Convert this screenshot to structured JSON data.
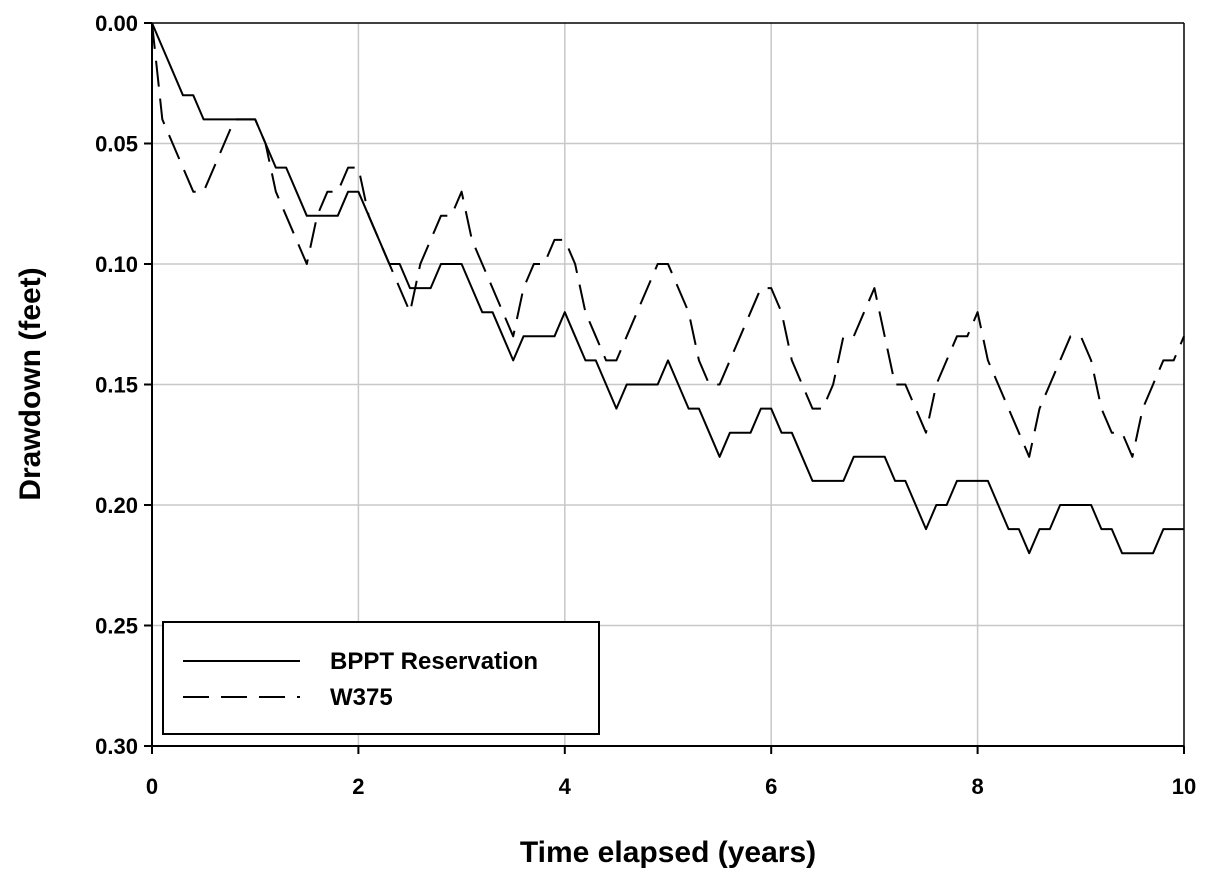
{
  "chart_data": {
    "type": "line",
    "title": "",
    "xlabel": "Time elapsed (years)",
    "ylabel": "Drawdown (feet)",
    "xlim": [
      0,
      10
    ],
    "ylim": [
      0,
      0.3
    ],
    "y_inverted": true,
    "grid": true,
    "legend_position": "bottom-left",
    "x_ticks": [
      0,
      2,
      4,
      6,
      8,
      10
    ],
    "x_tick_labels": [
      "0",
      "2",
      "4",
      "6",
      "8",
      "10"
    ],
    "y_ticks": [
      0,
      0.05,
      0.1,
      0.15,
      0.2,
      0.25,
      0.3
    ],
    "y_tick_labels": [
      "0.00",
      "0.05",
      "0.10",
      "0.15",
      "0.20",
      "0.25",
      "0.30"
    ],
    "series": [
      {
        "name": "BPPT Reservation",
        "style": "solid",
        "color": "#000000",
        "x": [
          0,
          0.1,
          0.2,
          0.3,
          0.4,
          0.5,
          0.6,
          0.7,
          0.8,
          0.9,
          1.0,
          1.1,
          1.2,
          1.3,
          1.4,
          1.5,
          1.6,
          1.7,
          1.8,
          1.9,
          2.0,
          2.1,
          2.2,
          2.3,
          2.4,
          2.5,
          2.6,
          2.7,
          2.8,
          2.9,
          3.0,
          3.1,
          3.2,
          3.3,
          3.4,
          3.5,
          3.6,
          3.7,
          3.8,
          3.9,
          4.0,
          4.1,
          4.2,
          4.3,
          4.4,
          4.5,
          4.6,
          4.7,
          4.8,
          4.9,
          5.0,
          5.1,
          5.2,
          5.3,
          5.4,
          5.5,
          5.6,
          5.7,
          5.8,
          5.9,
          6.0,
          6.1,
          6.2,
          6.3,
          6.4,
          6.5,
          6.6,
          6.7,
          6.8,
          6.9,
          7.0,
          7.1,
          7.2,
          7.3,
          7.4,
          7.5,
          7.6,
          7.7,
          7.8,
          7.9,
          8.0,
          8.1,
          8.2,
          8.3,
          8.4,
          8.5,
          8.6,
          8.7,
          8.8,
          8.9,
          9.0,
          9.1,
          9.2,
          9.3,
          9.4,
          9.5,
          9.6,
          9.7,
          9.8,
          9.9,
          10.0
        ],
        "y": [
          0,
          0.01,
          0.02,
          0.03,
          0.03,
          0.04,
          0.04,
          0.04,
          0.04,
          0.04,
          0.04,
          0.05,
          0.06,
          0.06,
          0.07,
          0.08,
          0.08,
          0.08,
          0.08,
          0.07,
          0.07,
          0.08,
          0.09,
          0.1,
          0.1,
          0.11,
          0.11,
          0.11,
          0.1,
          0.1,
          0.1,
          0.11,
          0.12,
          0.12,
          0.13,
          0.14,
          0.13,
          0.13,
          0.13,
          0.13,
          0.12,
          0.13,
          0.14,
          0.14,
          0.15,
          0.16,
          0.15,
          0.15,
          0.15,
          0.15,
          0.14,
          0.15,
          0.16,
          0.16,
          0.17,
          0.18,
          0.17,
          0.17,
          0.17,
          0.16,
          0.16,
          0.17,
          0.17,
          0.18,
          0.19,
          0.19,
          0.19,
          0.19,
          0.18,
          0.18,
          0.18,
          0.18,
          0.19,
          0.19,
          0.2,
          0.21,
          0.2,
          0.2,
          0.19,
          0.19,
          0.19,
          0.19,
          0.2,
          0.21,
          0.21,
          0.22,
          0.21,
          0.21,
          0.2,
          0.2,
          0.2,
          0.2,
          0.21,
          0.21,
          0.22,
          0.22,
          0.22,
          0.22,
          0.21,
          0.21,
          0.21
        ]
      },
      {
        "name": "W375",
        "style": "dashed",
        "color": "#000000",
        "x": [
          0,
          0.1,
          0.2,
          0.3,
          0.4,
          0.5,
          0.6,
          0.7,
          0.8,
          0.9,
          1.0,
          1.1,
          1.2,
          1.3,
          1.4,
          1.5,
          1.6,
          1.7,
          1.8,
          1.9,
          2.0,
          2.1,
          2.2,
          2.3,
          2.4,
          2.5,
          2.6,
          2.7,
          2.8,
          2.9,
          3.0,
          3.1,
          3.2,
          3.3,
          3.4,
          3.5,
          3.6,
          3.7,
          3.8,
          3.9,
          4.0,
          4.1,
          4.2,
          4.3,
          4.4,
          4.5,
          4.6,
          4.7,
          4.8,
          4.9,
          5.0,
          5.1,
          5.2,
          5.3,
          5.4,
          5.5,
          5.6,
          5.7,
          5.8,
          5.9,
          6.0,
          6.1,
          6.2,
          6.3,
          6.4,
          6.5,
          6.6,
          6.7,
          6.8,
          6.9,
          7.0,
          7.1,
          7.2,
          7.3,
          7.4,
          7.5,
          7.6,
          7.7,
          7.8,
          7.9,
          8.0,
          8.1,
          8.2,
          8.3,
          8.4,
          8.5,
          8.6,
          8.7,
          8.8,
          8.9,
          9.0,
          9.1,
          9.2,
          9.3,
          9.4,
          9.5,
          9.6,
          9.7,
          9.8,
          9.9,
          10.0
        ],
        "y": [
          0,
          0.04,
          0.05,
          0.06,
          0.07,
          0.07,
          0.06,
          0.05,
          0.04,
          0.04,
          0.04,
          0.05,
          0.07,
          0.08,
          0.09,
          0.1,
          0.08,
          0.07,
          0.07,
          0.06,
          0.06,
          0.08,
          0.09,
          0.1,
          0.11,
          0.12,
          0.1,
          0.09,
          0.08,
          0.08,
          0.07,
          0.09,
          0.1,
          0.11,
          0.12,
          0.13,
          0.11,
          0.1,
          0.1,
          0.09,
          0.09,
          0.1,
          0.12,
          0.13,
          0.14,
          0.14,
          0.13,
          0.12,
          0.11,
          0.1,
          0.1,
          0.11,
          0.12,
          0.14,
          0.15,
          0.15,
          0.14,
          0.13,
          0.12,
          0.11,
          0.11,
          0.12,
          0.14,
          0.15,
          0.16,
          0.16,
          0.15,
          0.13,
          0.13,
          0.12,
          0.11,
          0.13,
          0.15,
          0.15,
          0.16,
          0.17,
          0.15,
          0.14,
          0.13,
          0.13,
          0.12,
          0.14,
          0.15,
          0.16,
          0.17,
          0.18,
          0.16,
          0.15,
          0.14,
          0.13,
          0.13,
          0.14,
          0.16,
          0.17,
          0.17,
          0.18,
          0.16,
          0.15,
          0.14,
          0.14,
          0.13
        ]
      }
    ]
  }
}
